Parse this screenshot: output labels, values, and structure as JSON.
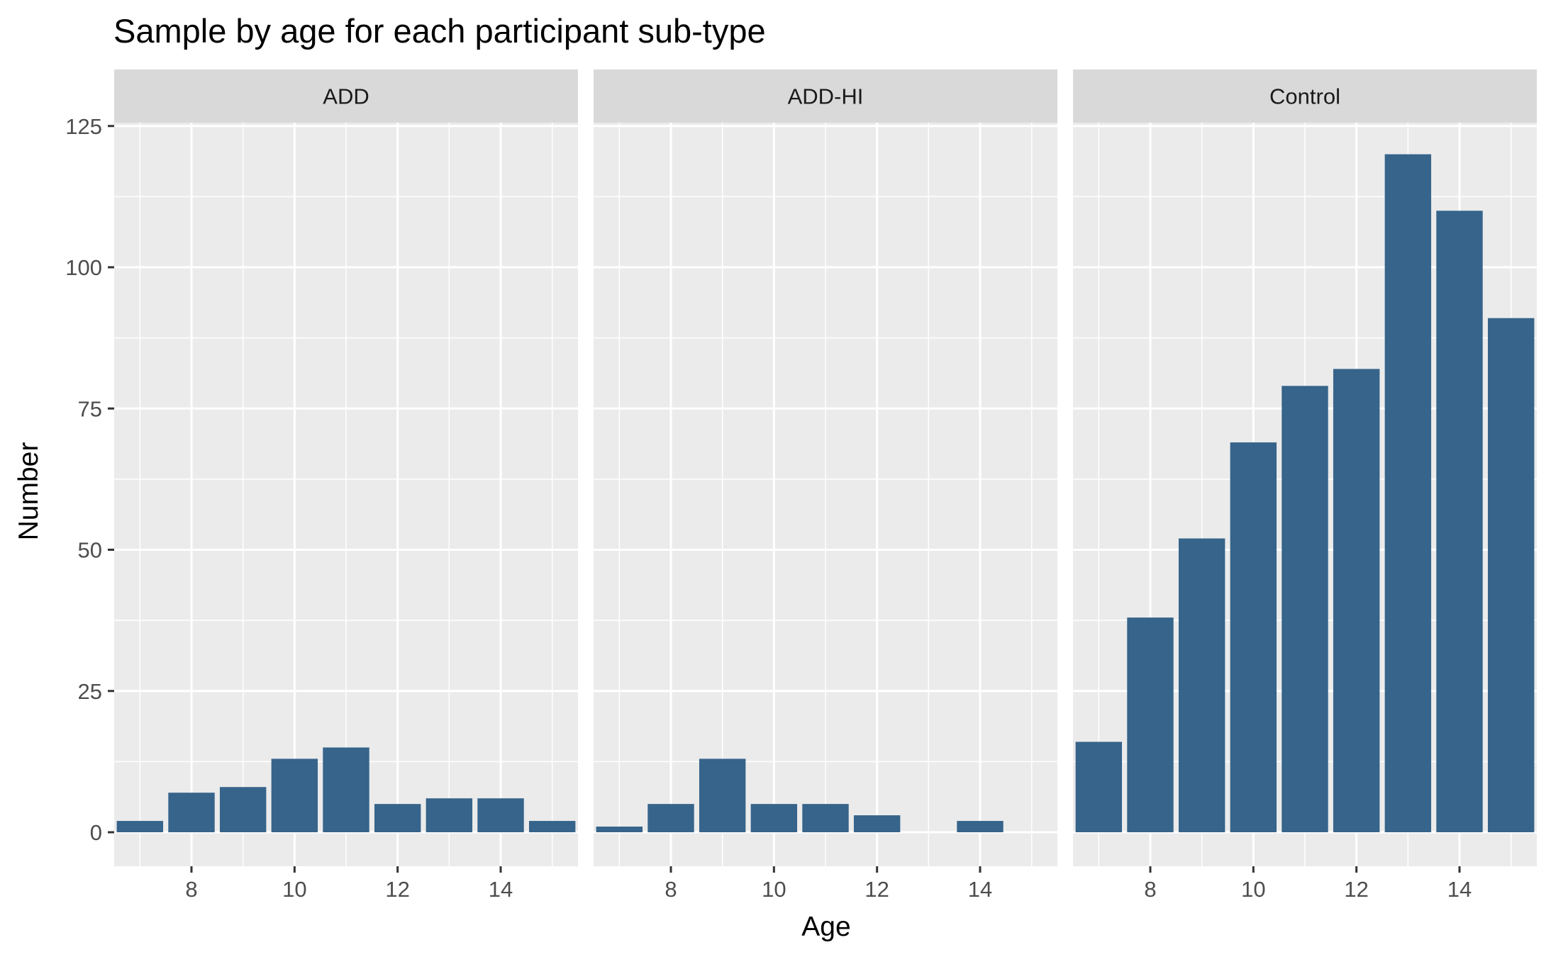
{
  "chart_data": {
    "type": "bar",
    "title": "Sample by age for each participant sub-type",
    "xlabel": "Age",
    "ylabel": "Number",
    "x": [
      7,
      8,
      9,
      10,
      11,
      12,
      13,
      14,
      15
    ],
    "x_ticks": [
      8,
      10,
      12,
      14
    ],
    "y_ticks": [
      0,
      25,
      50,
      75,
      100,
      125
    ],
    "xlim": [
      6.5,
      15.5
    ],
    "ylim": [
      0,
      125
    ],
    "grid": true,
    "bar_color": "#36648b",
    "panel_color": "#ebebeb",
    "strip_color": "#d9d9d9",
    "panels": [
      {
        "label": "ADD",
        "values": [
          2,
          7,
          8,
          13,
          15,
          5,
          6,
          6,
          2
        ]
      },
      {
        "label": "ADD-HI",
        "values": [
          1,
          5,
          13,
          5,
          5,
          3,
          0,
          2,
          0
        ]
      },
      {
        "label": "Control",
        "values": [
          16,
          38,
          52,
          69,
          79,
          82,
          120,
          110,
          91
        ]
      }
    ]
  }
}
